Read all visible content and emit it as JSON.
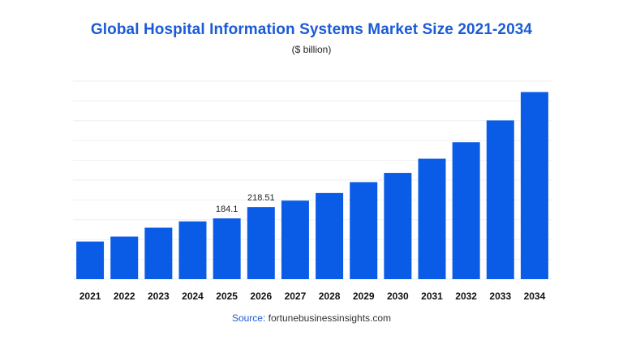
{
  "chart_data": {
    "type": "bar",
    "title": "Global Hospital Information Systems Market Size 2021-2034",
    "subtitle": "($ billion)",
    "xlabel": "",
    "ylabel": "",
    "categories": [
      "2021",
      "2022",
      "2023",
      "2024",
      "2025",
      "2026",
      "2027",
      "2028",
      "2029",
      "2030",
      "2031",
      "2032",
      "2033",
      "2034"
    ],
    "values": [
      114,
      129,
      156,
      175,
      184.1,
      218.51,
      238,
      261,
      294,
      322,
      365,
      415,
      481,
      567
    ],
    "data_labels": [
      "",
      "",
      "",
      "",
      "184.1",
      "218.51",
      "",
      "",
      "",
      "",
      "",
      "",
      "",
      ""
    ],
    "ylim": [
      0,
      600
    ],
    "grid": true,
    "legend": "none",
    "bar_color": "#0a5ce6"
  },
  "source": {
    "label": "Source:",
    "text": "fortunebusinessinsights.com"
  }
}
